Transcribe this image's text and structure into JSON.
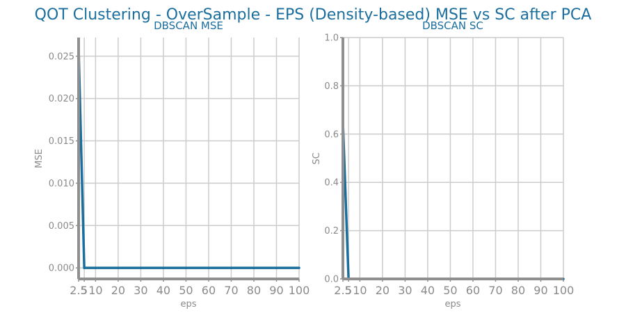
{
  "suptitle": "QOT Clustering - OverSample - EPS (Density-based) MSE vs SC after PCA",
  "colors": {
    "line": "#1a6e9e",
    "grid": "#cccccc",
    "spine": "#8f8f8f",
    "text": "#8a8a8a",
    "title": "#1a6e9e"
  },
  "chart_data": [
    {
      "type": "line",
      "title": "DBSCAN MSE",
      "xlabel": "eps",
      "ylabel": "MSE",
      "x_ticks": [
        "2.5",
        "5",
        "10",
        "20",
        "30",
        "40",
        "50",
        "60",
        "70",
        "80",
        "90",
        "100"
      ],
      "y_ticks": [
        "0.000",
        "0.005",
        "0.010",
        "0.015",
        "0.020",
        "0.025"
      ],
      "xlim": [
        2.5,
        100
      ],
      "ylim": [
        -0.0013,
        0.0272
      ],
      "grid": true,
      "series": [
        {
          "x": [
            2.5,
            5,
            10,
            20,
            30,
            40,
            50,
            60,
            70,
            80,
            90,
            100
          ],
          "values": [
            0.026,
            0.0,
            0.0,
            0.0,
            0.0,
            0.0,
            0.0,
            0.0,
            0.0,
            0.0,
            0.0,
            0.0
          ]
        }
      ]
    },
    {
      "type": "line",
      "title": "DBSCAN SC",
      "xlabel": "eps",
      "ylabel": "SC",
      "x_ticks": [
        "2.5",
        "5",
        "10",
        "20",
        "30",
        "40",
        "50",
        "60",
        "70",
        "80",
        "90",
        "100"
      ],
      "y_ticks": [
        "0.0",
        "0.2",
        "0.4",
        "0.6",
        "0.8",
        "1.0"
      ],
      "xlim": [
        2.5,
        100
      ],
      "ylim": [
        0,
        1.0
      ],
      "grid": true,
      "series": [
        {
          "x": [
            2.5,
            5,
            10,
            20,
            30,
            40,
            50,
            60,
            70,
            80,
            90,
            100
          ],
          "values": [
            0.65,
            0.0,
            0.0,
            0.0,
            0.0,
            0.0,
            0.0,
            0.0,
            0.0,
            0.0,
            0.0,
            0.0
          ]
        }
      ]
    }
  ]
}
